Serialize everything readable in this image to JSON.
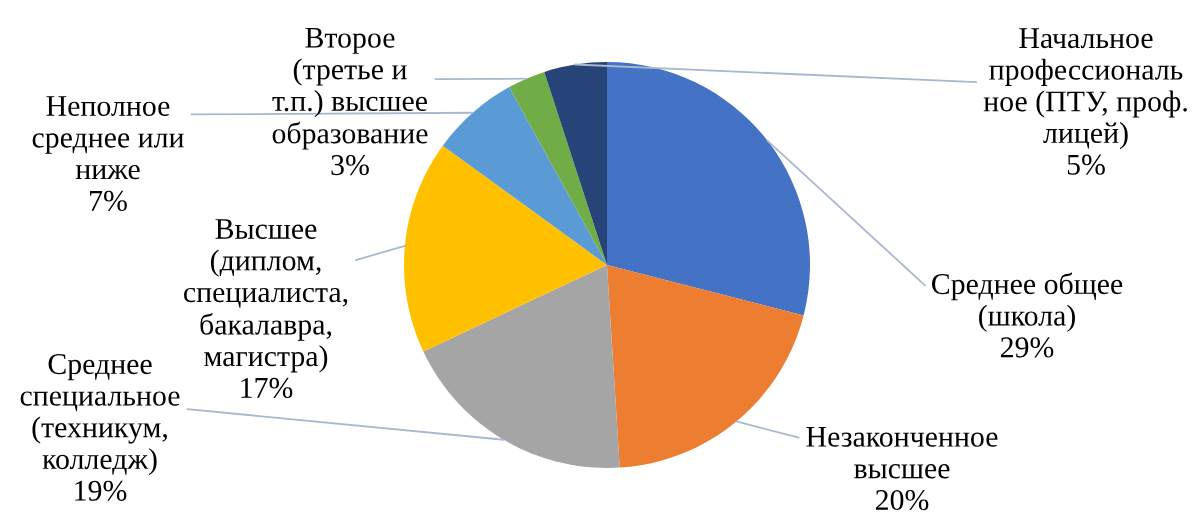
{
  "chart_data": {
    "type": "pie",
    "categories": [
      "Среднее общее\n(школа)",
      "Незаконченное\nвысшее",
      "Среднее\nспециальное\n(техникум,\nколледж)",
      "Высшее\n(диплом,\nспециалиста,\nбакалавра,\nмагистра)",
      "Неполное\nсреднее или\nниже",
      "Второе\n(третье и\nт.п.) высшее\nобразование",
      "Начальное\nпрофессиональ\nное (ПТУ, проф.\nлицей)"
    ],
    "values": [
      29,
      20,
      19,
      17,
      7,
      3,
      5
    ],
    "value_labels": [
      "29%",
      "20%",
      "19%",
      "17%",
      "7%",
      "3%",
      "5%"
    ],
    "colors": [
      "#4472c4",
      "#ed7d31",
      "#a5a5a5",
      "#ffc000",
      "#5b9bd5",
      "#70ad47",
      "#264478"
    ]
  }
}
